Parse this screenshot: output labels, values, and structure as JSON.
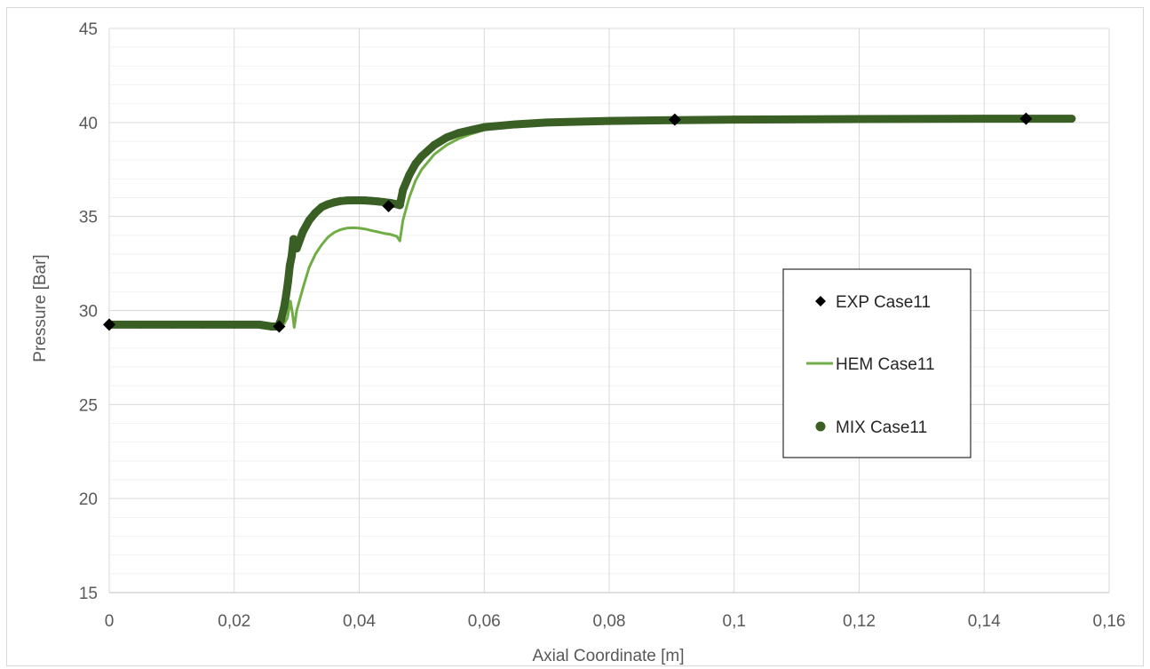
{
  "chart_data": {
    "type": "scatter",
    "xlabel": "Axial Coordinate [m]",
    "ylabel": "Pressure [Bar]",
    "xlim": [
      0,
      0.16
    ],
    "ylim": [
      15,
      45
    ],
    "x_ticks": [
      0,
      0.02,
      0.04,
      0.06,
      0.08,
      0.1,
      0.12,
      0.14,
      0.16
    ],
    "x_tick_labels": [
      "0",
      "0,02",
      "0,04",
      "0,06",
      "0,08",
      "0,1",
      "0,12",
      "0,14",
      "0,16"
    ],
    "y_ticks": [
      15,
      20,
      25,
      30,
      35,
      40,
      45
    ],
    "y_tick_labels": [
      "15",
      "20",
      "25",
      "30",
      "35",
      "40",
      "45"
    ],
    "y_minor_step": 1,
    "grid": true,
    "legend_position": "right",
    "series": [
      {
        "name": "EXP Case11",
        "kind": "markers",
        "marker": "diamond",
        "color": "#000000",
        "x": [
          0,
          0.0272,
          0.0447,
          0.0905,
          0.1467
        ],
        "y": [
          29.25,
          29.15,
          35.55,
          40.15,
          40.2
        ]
      },
      {
        "name": "HEM Case11",
        "kind": "line",
        "color": "#70ad47",
        "x": [
          0,
          0.005,
          0.01,
          0.015,
          0.02,
          0.024,
          0.026,
          0.0275,
          0.028,
          0.0285,
          0.029,
          0.0293,
          0.0296,
          0.03,
          0.031,
          0.032,
          0.033,
          0.034,
          0.035,
          0.036,
          0.037,
          0.038,
          0.039,
          0.04,
          0.041,
          0.042,
          0.043,
          0.044,
          0.045,
          0.046,
          0.0465,
          0.047,
          0.048,
          0.049,
          0.05,
          0.052,
          0.054,
          0.056,
          0.058,
          0.06,
          0.065,
          0.07,
          0.08,
          0.09,
          0.1,
          0.12,
          0.14,
          0.154
        ],
        "y": [
          29.25,
          29.25,
          29.25,
          29.25,
          29.25,
          29.25,
          29.2,
          29.15,
          29.3,
          29.6,
          30.5,
          29.9,
          29.1,
          30.0,
          31.2,
          32.3,
          33.0,
          33.5,
          33.9,
          34.15,
          34.3,
          34.38,
          34.4,
          34.38,
          34.33,
          34.25,
          34.18,
          34.1,
          34.05,
          33.95,
          33.7,
          34.8,
          36.0,
          36.9,
          37.5,
          38.3,
          38.8,
          39.15,
          39.4,
          39.6,
          39.85,
          39.98,
          40.08,
          40.12,
          40.15,
          40.18,
          40.2,
          40.2
        ]
      },
      {
        "name": "MIX Case11",
        "kind": "markers",
        "marker": "circle",
        "color": "#3a5f25",
        "x": [
          0,
          0.005,
          0.01,
          0.015,
          0.02,
          0.024,
          0.026,
          0.027,
          0.0275,
          0.028,
          0.0283,
          0.0286,
          0.0289,
          0.0292,
          0.0295,
          0.03,
          0.031,
          0.032,
          0.033,
          0.034,
          0.035,
          0.036,
          0.037,
          0.038,
          0.039,
          0.04,
          0.041,
          0.042,
          0.043,
          0.044,
          0.045,
          0.046,
          0.0465,
          0.047,
          0.048,
          0.049,
          0.05,
          0.052,
          0.054,
          0.056,
          0.058,
          0.06,
          0.065,
          0.07,
          0.08,
          0.09,
          0.1,
          0.12,
          0.14,
          0.154
        ],
        "y": [
          29.25,
          29.25,
          29.25,
          29.25,
          29.25,
          29.25,
          29.15,
          29.15,
          29.5,
          30.2,
          30.8,
          31.5,
          32.4,
          32.9,
          33.8,
          33.3,
          34.2,
          34.8,
          35.2,
          35.5,
          35.65,
          35.75,
          35.82,
          35.85,
          35.86,
          35.86,
          35.85,
          35.83,
          35.8,
          35.76,
          35.72,
          35.65,
          35.6,
          36.4,
          37.2,
          37.8,
          38.2,
          38.8,
          39.2,
          39.45,
          39.6,
          39.75,
          39.9,
          40.0,
          40.08,
          40.12,
          40.15,
          40.18,
          40.2,
          40.2
        ]
      }
    ]
  }
}
